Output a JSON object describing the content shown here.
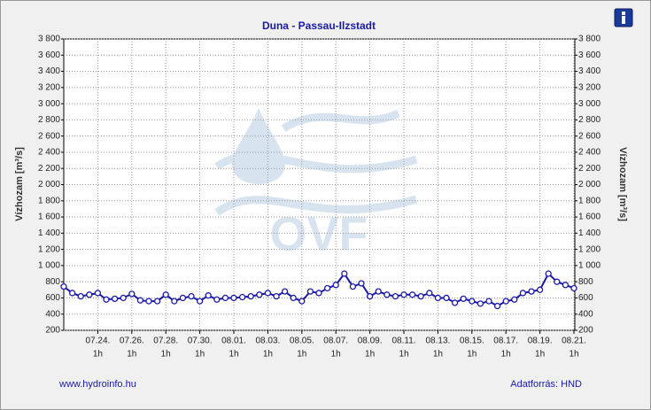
{
  "chart_data": {
    "type": "line",
    "title": "Duna - Passau-Ilzstadt",
    "ylabel": "Vízhozam [m³/s]",
    "watermark": "OVF",
    "x_sublabel": "1h",
    "footer_left": "www.hydroinfo.hu",
    "footer_right": "Adatforrás: HND",
    "categories": [
      null,
      null,
      null,
      null,
      "07.24.",
      null,
      null,
      null,
      "07.26.",
      null,
      null,
      null,
      "07.28.",
      null,
      null,
      null,
      "07.30.",
      null,
      null,
      null,
      "08.01.",
      null,
      null,
      null,
      "08.03.",
      null,
      null,
      null,
      "08.05.",
      null,
      null,
      null,
      "08.07.",
      null,
      null,
      null,
      "08.09.",
      null,
      null,
      null,
      "08.11.",
      null,
      null,
      null,
      "08.13.",
      null,
      null,
      null,
      "08.15.",
      null,
      null,
      null,
      "08.17.",
      null,
      null,
      null,
      "08.19.",
      null,
      null,
      null,
      "08.21."
    ],
    "series": [
      {
        "name": "Vízhozam",
        "color": "#1a1aa6",
        "values": [
          740,
          660,
          620,
          640,
          660,
          580,
          590,
          600,
          650,
          570,
          560,
          560,
          640,
          560,
          600,
          620,
          560,
          630,
          580,
          600,
          600,
          610,
          620,
          640,
          660,
          620,
          680,
          600,
          560,
          680,
          660,
          720,
          760,
          900,
          740,
          780,
          620,
          680,
          640,
          620,
          640,
          640,
          620,
          660,
          600,
          600,
          540,
          590,
          560,
          530,
          560,
          500,
          560,
          580,
          660,
          680,
          700,
          900,
          800,
          760,
          720
        ]
      }
    ],
    "ylim": [
      200,
      3800
    ],
    "yticks": [
      200,
      400,
      600,
      800,
      {
        "value": 1000,
        "label": "1 000"
      },
      {
        "value": 1200,
        "label": "1 200"
      },
      {
        "value": 1400,
        "label": "1 400"
      },
      {
        "value": 1600,
        "label": "1 600"
      },
      {
        "value": 1800,
        "label": "1 800"
      },
      {
        "value": 2000,
        "label": "2 000"
      },
      {
        "value": 2200,
        "label": "2 200"
      },
      {
        "value": 2400,
        "label": "2 400"
      },
      {
        "value": 2600,
        "label": "2 600"
      },
      {
        "value": 2800,
        "label": "2 800"
      },
      {
        "value": 3000,
        "label": "3 000"
      },
      {
        "value": 3200,
        "label": "3 200"
      },
      {
        "value": 3400,
        "label": "3 400"
      },
      {
        "value": 3600,
        "label": "3 600"
      },
      {
        "value": 3800,
        "label": "3 800"
      }
    ],
    "grid": true
  }
}
